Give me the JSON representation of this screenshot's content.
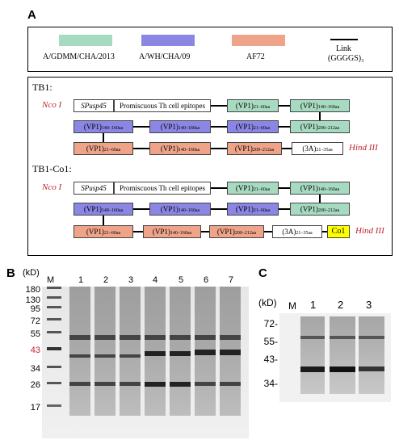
{
  "panels": {
    "a": "A",
    "b": "B",
    "c": "C"
  },
  "legend": [
    {
      "label": "A/GDMM/CHA/2013",
      "color": "#a7dbc1"
    },
    {
      "label": "A/WH/CHA/09",
      "color": "#8b85e3"
    },
    {
      "label": "AF72",
      "color": "#efa48a"
    },
    {
      "label_line1": "Link",
      "label_line2": "(GGGGS)₃",
      "color": "#000000"
    }
  ],
  "tb1": {
    "title": "TB1:",
    "nco": "Nco I",
    "hind": "Hind III",
    "spusp": "SPusp45",
    "epitopes": "Promiscuous Th cell epitopes",
    "v21": "(VP1)",
    "v21s": "21–60aa",
    "v140": "(VP1)",
    "v140s": "140–160aa",
    "v200": "(VP1)",
    "v200s": "200–212aa",
    "a3": "(3A)",
    "a3s": "21–35aa"
  },
  "tb1co1": {
    "title": "TB1-Co1:",
    "co1": "Co1"
  },
  "gelB": {
    "kd": "(kD)",
    "m": "M",
    "lanes": [
      "1",
      "2",
      "3",
      "4",
      "5",
      "6",
      "7"
    ],
    "markers": [
      "180",
      "130",
      "95",
      "72",
      "55",
      "43",
      "34",
      "26",
      "17"
    ],
    "highlight_color": "#c0272d"
  },
  "gelC": {
    "kd": "(kD)",
    "m": "M",
    "lanes": [
      "1",
      "2",
      "3"
    ],
    "markers": [
      "72-",
      "55-",
      "43-",
      "34-"
    ]
  }
}
